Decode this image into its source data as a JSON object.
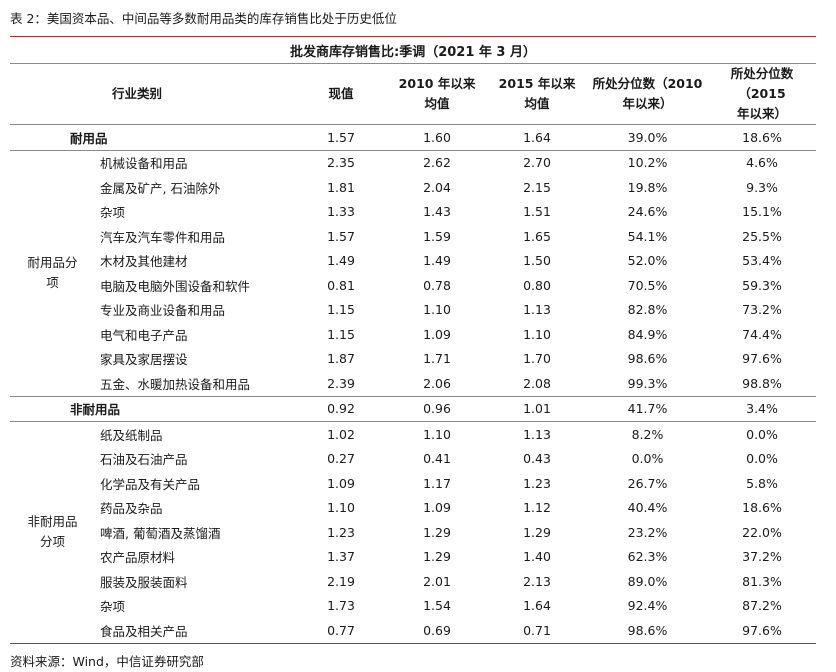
{
  "caption": "表 2：美国资本品、中间品等多数耐用品类的库存销售比处于历史低位",
  "table_title": "批发商库存销售比:季调（2021 年 3 月）",
  "headers": {
    "category": "行业类别",
    "current": "现值",
    "avg2010": [
      "2010 年以来",
      "均值"
    ],
    "avg2015": [
      "2015 年以来",
      "均值"
    ],
    "pct2010": [
      "所处分位数（2010",
      "年以来）"
    ],
    "pct2015": [
      "所处分位数（2015",
      "年以来）"
    ]
  },
  "durable": {
    "name": "耐用品",
    "values": [
      "1.57",
      "1.60",
      "1.64",
      "39.0%",
      "18.6%"
    ],
    "group_label": [
      "耐用品分",
      "项"
    ],
    "rows": [
      {
        "name": "机械设备和用品",
        "values": [
          "2.35",
          "2.62",
          "2.70",
          "10.2%",
          "4.6%"
        ]
      },
      {
        "name": "金属及矿产, 石油除外",
        "values": [
          "1.81",
          "2.04",
          "2.15",
          "19.8%",
          "9.3%"
        ]
      },
      {
        "name": "杂项",
        "values": [
          "1.33",
          "1.43",
          "1.51",
          "24.6%",
          "15.1%"
        ]
      },
      {
        "name": "汽车及汽车零件和用品",
        "values": [
          "1.57",
          "1.59",
          "1.65",
          "54.1%",
          "25.5%"
        ]
      },
      {
        "name": "木材及其他建材",
        "values": [
          "1.49",
          "1.49",
          "1.50",
          "52.0%",
          "53.4%"
        ]
      },
      {
        "name": "电脑及电脑外围设备和软件",
        "values": [
          "0.81",
          "0.78",
          "0.80",
          "70.5%",
          "59.3%"
        ]
      },
      {
        "name": "专业及商业设备和用品",
        "values": [
          "1.15",
          "1.10",
          "1.13",
          "82.8%",
          "73.2%"
        ]
      },
      {
        "name": "电气和电子产品",
        "values": [
          "1.15",
          "1.09",
          "1.10",
          "84.9%",
          "74.4%"
        ]
      },
      {
        "name": "家具及家居摆设",
        "values": [
          "1.87",
          "1.71",
          "1.70",
          "98.6%",
          "97.6%"
        ]
      },
      {
        "name": "五金、水暖加热设备和用品",
        "values": [
          "2.39",
          "2.06",
          "2.08",
          "99.3%",
          "98.8%"
        ]
      }
    ]
  },
  "nondurable": {
    "name": "非耐用品",
    "values": [
      "0.92",
      "0.96",
      "1.01",
      "41.7%",
      "3.4%"
    ],
    "group_label": [
      "非耐用品",
      "分项"
    ],
    "rows": [
      {
        "name": "纸及纸制品",
        "values": [
          "1.02",
          "1.10",
          "1.13",
          "8.2%",
          "0.0%"
        ]
      },
      {
        "name": "石油及石油产品",
        "values": [
          "0.27",
          "0.41",
          "0.43",
          "0.0%",
          "0.0%"
        ]
      },
      {
        "name": "化学品及有关产品",
        "values": [
          "1.09",
          "1.17",
          "1.23",
          "26.7%",
          "5.8%"
        ]
      },
      {
        "name": "药品及杂品",
        "values": [
          "1.10",
          "1.09",
          "1.12",
          "40.4%",
          "18.6%"
        ]
      },
      {
        "name": "啤酒, 葡萄酒及蒸馏酒",
        "values": [
          "1.23",
          "1.29",
          "1.29",
          "23.2%",
          "22.0%"
        ]
      },
      {
        "name": "农产品原材料",
        "values": [
          "1.37",
          "1.29",
          "1.40",
          "62.3%",
          "37.2%"
        ]
      },
      {
        "name": "服装及服装面料",
        "values": [
          "2.19",
          "2.01",
          "2.13",
          "89.0%",
          "81.3%"
        ]
      },
      {
        "name": "杂项",
        "values": [
          "1.73",
          "1.54",
          "1.64",
          "92.4%",
          "87.2%"
        ]
      },
      {
        "name": "食品及相关产品",
        "values": [
          "0.77",
          "0.69",
          "0.71",
          "98.6%",
          "97.6%"
        ]
      }
    ]
  },
  "source": "资料来源：Wind，中信证券研究部",
  "colors": {
    "rule": "#c0272d",
    "text": "#1a1a1a"
  }
}
